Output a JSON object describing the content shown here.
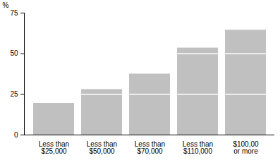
{
  "chart_data": {
    "type": "bar",
    "y_label": "%",
    "categories": [
      "Less than\n$25,000",
      "Less than\n$50,000",
      "Less than\n$70,000",
      "Less than\n$110,000",
      "$100,00\nor more"
    ],
    "values": [
      19.5,
      28,
      37.5,
      53.5,
      64.5
    ],
    "color": "#c0c0c0",
    "ylim": [
      0,
      75
    ],
    "yticks": [
      0,
      25,
      50,
      75
    ],
    "grid": true
  }
}
